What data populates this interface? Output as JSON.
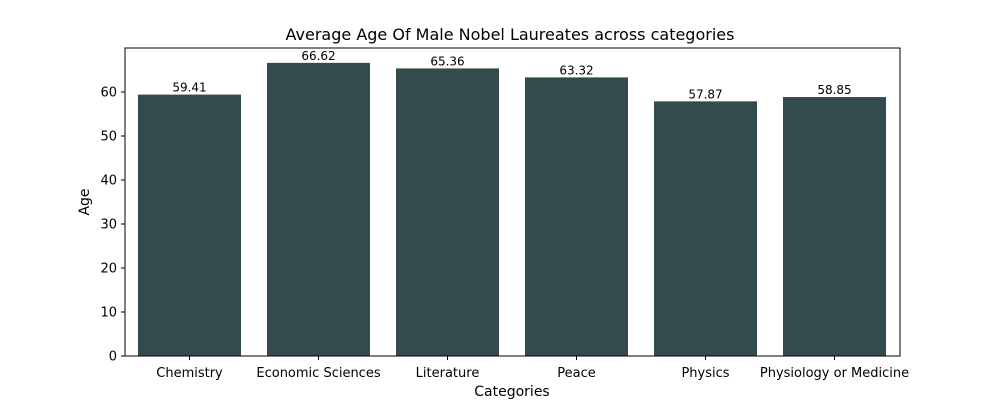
{
  "chart_data": {
    "type": "bar",
    "title": "Average Age Of Male Nobel Laureates across categories",
    "xlabel": "Categories",
    "ylabel": "Age",
    "categories": [
      "Chemistry",
      "Economic Sciences",
      "Literature",
      "Peace",
      "Physics",
      "Physiology or Medicine"
    ],
    "values": [
      59.41,
      66.62,
      65.36,
      63.32,
      57.87,
      58.85
    ],
    "value_labels": [
      "59.41",
      "66.62",
      "65.36",
      "63.32",
      "57.87",
      "58.85"
    ],
    "ylim": [
      0,
      70
    ],
    "yticks": [
      0,
      10,
      20,
      30,
      40,
      50,
      60
    ],
    "ytick_labels": [
      "0",
      "10",
      "20",
      "30",
      "40",
      "50",
      "60"
    ],
    "bar_color": "#334b4c",
    "grid": false,
    "legend": "none"
  }
}
